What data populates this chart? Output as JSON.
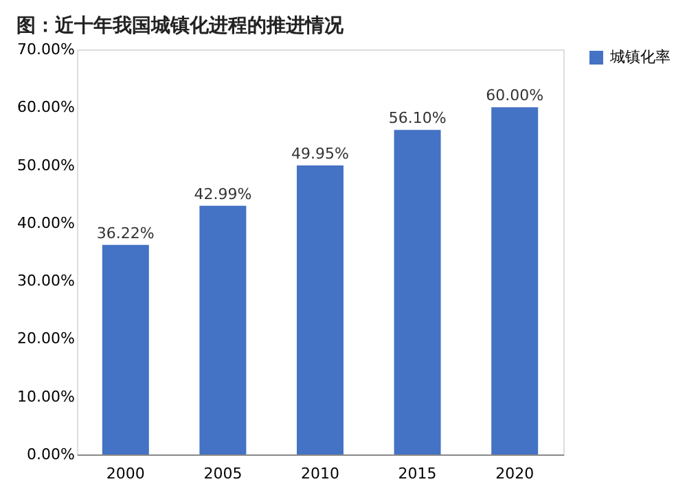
{
  "chart_data": {
    "type": "bar",
    "title": "图：近十年我国城镇化进程的推进情况",
    "categories": [
      "2000",
      "2005",
      "2010",
      "2015",
      "2020"
    ],
    "series": [
      {
        "name": "城镇化率",
        "color": "#4472c4",
        "values": [
          36.22,
          42.99,
          49.95,
          56.1,
          60.0
        ]
      }
    ],
    "value_labels": [
      "36.22%",
      "42.99%",
      "49.95%",
      "56.10%",
      "60.00%"
    ],
    "ylim": [
      0,
      70
    ],
    "yticks": [
      {
        "value": 0,
        "label": "0.00%"
      },
      {
        "value": 10,
        "label": "10.00%"
      },
      {
        "value": 20,
        "label": "20.00%"
      },
      {
        "value": 30,
        "label": "30.00%"
      },
      {
        "value": 40,
        "label": "40.00%"
      },
      {
        "value": 50,
        "label": "50.00%"
      },
      {
        "value": 60,
        "label": "60.00%"
      },
      {
        "value": 70,
        "label": "70.00%"
      }
    ],
    "grid": false,
    "legend": "right"
  }
}
